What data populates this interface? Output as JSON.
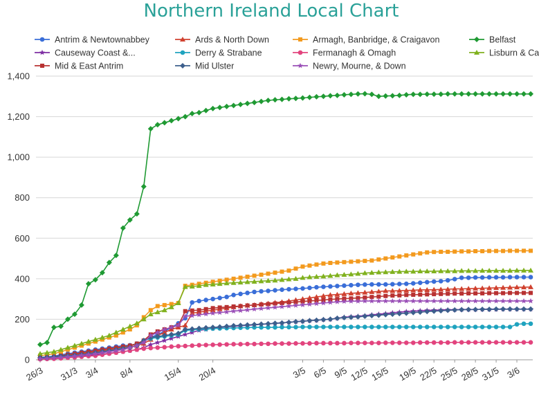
{
  "chart_data": {
    "type": "line",
    "title": "Northern Ireland Local Chart",
    "xlabel": "",
    "ylabel": "",
    "ylim": [
      0,
      1400
    ],
    "yticks": [
      "0",
      "200",
      "400",
      "600",
      "800",
      "1,000",
      "1,200",
      "1,400"
    ],
    "ytick_values": [
      0,
      200,
      400,
      600,
      800,
      1000,
      1200,
      1400
    ],
    "categories": [
      "26/3",
      "27/3",
      "28/3",
      "29/3",
      "30/3",
      "31/3",
      "1/4",
      "2/4",
      "3/4",
      "4/4",
      "5/4",
      "6/4",
      "7/4",
      "8/4",
      "9/4",
      "10/4",
      "11/4",
      "12/4",
      "13/4",
      "14/4",
      "15/4",
      "16/4",
      "17/4",
      "18/4",
      "19/4",
      "20/4",
      "21/4",
      "22/4",
      "23/4",
      "24/4",
      "25/4",
      "26/4",
      "27/4",
      "28/4",
      "29/4",
      "30/4",
      "1/5",
      "2/5",
      "3/5",
      "4/5",
      "5/5",
      "6/5",
      "7/5",
      "8/5",
      "9/5",
      "10/5",
      "11/5",
      "12/5",
      "13/5",
      "14/5",
      "15/5",
      "16/5",
      "17/5",
      "18/5",
      "19/5",
      "20/5",
      "21/5",
      "22/5",
      "23/5",
      "24/5",
      "25/5",
      "26/5",
      "27/5",
      "28/5",
      "29/5",
      "30/5",
      "31/5",
      "1/6",
      "2/6",
      "3/6",
      "4/6",
      "5/6"
    ],
    "xtick_labels": [
      "26/3",
      "31/3",
      "3/4",
      "8/4",
      "15/4",
      "20/4",
      "3/5",
      "6/5",
      "9/5",
      "12/5",
      "15/5",
      "19/5",
      "22/5",
      "25/5",
      "28/5",
      "31/5",
      "3/6"
    ],
    "legend_position": "top",
    "grid": "horizontal",
    "series": [
      {
        "name": "Antrim & Newtownabbey",
        "color": "#3a6ed8",
        "marker": "circle",
        "values": [
          12,
          15,
          18,
          25,
          30,
          35,
          40,
          45,
          50,
          55,
          60,
          65,
          70,
          72,
          78,
          90,
          110,
          125,
          140,
          160,
          180,
          205,
          283,
          290,
          295,
          300,
          305,
          310,
          320,
          325,
          330,
          335,
          338,
          340,
          343,
          346,
          348,
          350,
          352,
          355,
          358,
          360,
          362,
          364,
          366,
          368,
          370,
          371,
          372,
          372,
          372,
          373,
          374,
          375,
          377,
          380,
          383,
          386,
          388,
          392,
          398,
          405,
          405,
          406,
          406,
          407,
          407,
          407,
          408,
          408,
          408,
          408
        ]
      },
      {
        "name": "Ards & North Down",
        "color": "#d0412f",
        "marker": "triangle",
        "values": [
          8,
          10,
          12,
          16,
          20,
          25,
          30,
          35,
          40,
          45,
          50,
          55,
          60,
          65,
          70,
          80,
          100,
          120,
          135,
          150,
          160,
          170,
          230,
          235,
          240,
          245,
          250,
          255,
          260,
          265,
          268,
          270,
          275,
          278,
          282,
          285,
          290,
          295,
          300,
          305,
          310,
          315,
          320,
          322,
          325,
          328,
          330,
          332,
          335,
          337,
          340,
          340,
          341,
          342,
          343,
          345,
          345,
          346,
          347,
          348,
          350,
          350,
          351,
          352,
          353,
          354,
          355,
          356,
          357,
          358,
          358,
          359
        ]
      },
      {
        "name": "Armagh, Banbridge, & Craigavon",
        "color": "#f39a1e",
        "marker": "square",
        "values": [
          20,
          25,
          30,
          40,
          50,
          60,
          70,
          80,
          90,
          100,
          110,
          120,
          135,
          150,
          170,
          210,
          245,
          265,
          270,
          275,
          280,
          365,
          370,
          375,
          380,
          385,
          390,
          395,
          400,
          405,
          410,
          415,
          420,
          425,
          430,
          435,
          440,
          450,
          460,
          465,
          470,
          475,
          478,
          480,
          482,
          484,
          486,
          488,
          490,
          495,
          500,
          505,
          510,
          515,
          520,
          525,
          530,
          532,
          533,
          533,
          534,
          535,
          535,
          536,
          536,
          537,
          537,
          537,
          538,
          538,
          538,
          538
        ]
      },
      {
        "name": "Belfast",
        "color": "#1f9a33",
        "marker": "diamond",
        "values": [
          75,
          85,
          160,
          165,
          200,
          225,
          270,
          375,
          395,
          430,
          480,
          515,
          650,
          690,
          720,
          855,
          1140,
          1160,
          1170,
          1180,
          1190,
          1200,
          1215,
          1220,
          1230,
          1240,
          1245,
          1250,
          1255,
          1260,
          1265,
          1270,
          1275,
          1280,
          1283,
          1285,
          1288,
          1290,
          1292,
          1295,
          1298,
          1300,
          1303,
          1305,
          1308,
          1310,
          1312,
          1313,
          1310,
          1300,
          1302,
          1303,
          1305,
          1308,
          1310,
          1310,
          1311,
          1311,
          1311,
          1312,
          1312,
          1312,
          1312,
          1312,
          1312,
          1312,
          1312,
          1312,
          1312,
          1312,
          1312,
          1312
        ]
      },
      {
        "name": "Causeway Coast &...",
        "color": "#7e2ea3",
        "marker": "star",
        "values": [
          5,
          7,
          9,
          12,
          15,
          18,
          20,
          22,
          25,
          28,
          32,
          36,
          40,
          45,
          50,
          60,
          75,
          85,
          95,
          105,
          115,
          125,
          135,
          145,
          150,
          155,
          160,
          163,
          165,
          168,
          170,
          172,
          175,
          177,
          180,
          182,
          185,
          188,
          190,
          193,
          195,
          198,
          200,
          205,
          210,
          213,
          215,
          218,
          222,
          225,
          228,
          232,
          235,
          238,
          240,
          242,
          244,
          245,
          246,
          247,
          247,
          248,
          248,
          248,
          249,
          249,
          249,
          250,
          250,
          250,
          250,
          250
        ]
      },
      {
        "name": "Derry & Strabane",
        "color": "#1fa3bf",
        "marker": "circle",
        "values": [
          10,
          12,
          15,
          18,
          20,
          22,
          25,
          30,
          35,
          40,
          45,
          50,
          60,
          70,
          80,
          95,
          105,
          110,
          115,
          120,
          125,
          145,
          148,
          150,
          152,
          154,
          155,
          156,
          157,
          158,
          159,
          160,
          160,
          160,
          160,
          161,
          161,
          161,
          162,
          162,
          162,
          162,
          162,
          162,
          162,
          162,
          162,
          162,
          162,
          162,
          162,
          162,
          162,
          162,
          162,
          162,
          162,
          162,
          162,
          162,
          162,
          162,
          162,
          162,
          162,
          162,
          162,
          162,
          162,
          175,
          178,
          178
        ]
      },
      {
        "name": "Fermanagh & Omagh",
        "color": "#e2447e",
        "marker": "circle",
        "values": [
          3,
          4,
          5,
          7,
          10,
          12,
          15,
          18,
          20,
          25,
          30,
          35,
          40,
          45,
          50,
          55,
          58,
          60,
          62,
          65,
          67,
          68,
          70,
          72,
          73,
          74,
          75,
          76,
          77,
          77,
          78,
          78,
          79,
          79,
          80,
          80,
          80,
          81,
          81,
          81,
          82,
          82,
          82,
          82,
          82,
          83,
          83,
          83,
          83,
          83,
          84,
          84,
          84,
          84,
          84,
          85,
          85,
          85,
          85,
          85,
          86,
          86,
          86,
          86,
          86,
          86,
          86,
          86,
          86,
          86,
          86,
          86
        ]
      },
      {
        "name": "Lisburn & Castlereagh",
        "color": "#80b11e",
        "marker": "triangle",
        "values": [
          30,
          35,
          40,
          50,
          60,
          70,
          80,
          90,
          100,
          110,
          120,
          135,
          150,
          165,
          180,
          200,
          225,
          235,
          245,
          260,
          280,
          360,
          362,
          365,
          370,
          372,
          375,
          378,
          380,
          382,
          384,
          386,
          388,
          390,
          392,
          395,
          398,
          400,
          405,
          408,
          410,
          412,
          415,
          418,
          420,
          422,
          425,
          428,
          430,
          432,
          433,
          434,
          435,
          436,
          436,
          437,
          437,
          437,
          438,
          438,
          438,
          439,
          439,
          439,
          440,
          440,
          440,
          440,
          440,
          441,
          441,
          441
        ]
      },
      {
        "name": "Mid & East Antrim",
        "color": "#b83232",
        "marker": "square",
        "values": [
          10,
          12,
          15,
          20,
          25,
          30,
          35,
          40,
          45,
          50,
          55,
          60,
          65,
          70,
          80,
          95,
          125,
          140,
          150,
          160,
          170,
          240,
          243,
          245,
          250,
          255,
          258,
          260,
          263,
          265,
          268,
          270,
          273,
          275,
          278,
          280,
          283,
          285,
          288,
          290,
          293,
          295,
          298,
          300,
          302,
          303,
          305,
          307,
          310,
          312,
          315,
          317,
          318,
          320,
          321,
          322,
          323,
          324,
          325,
          326,
          327,
          327,
          328,
          328,
          328,
          329,
          329,
          329,
          330,
          330,
          330,
          330
        ]
      },
      {
        "name": "Mid Ulster",
        "color": "#3c5f8c",
        "marker": "diamond",
        "values": [
          10,
          12,
          15,
          18,
          20,
          22,
          25,
          30,
          35,
          40,
          45,
          50,
          55,
          60,
          70,
          95,
          110,
          115,
          120,
          125,
          130,
          150,
          152,
          155,
          158,
          160,
          162,
          165,
          168,
          170,
          172,
          174,
          176,
          178,
          180,
          182,
          185,
          188,
          190,
          193,
          195,
          198,
          200,
          205,
          208,
          210,
          212,
          215,
          218,
          220,
          223,
          225,
          228,
          230,
          233,
          235,
          238,
          240,
          242,
          244,
          246,
          247,
          248,
          248,
          249,
          249,
          250,
          250,
          250,
          250,
          250,
          250
        ]
      },
      {
        "name": "Newry, Mourne, & Down",
        "color": "#9a4fb7",
        "marker": "star",
        "values": [
          5,
          7,
          9,
          12,
          15,
          18,
          22,
          26,
          30,
          35,
          40,
          45,
          50,
          60,
          70,
          85,
          120,
          135,
          150,
          160,
          170,
          215,
          218,
          222,
          226,
          230,
          233,
          236,
          240,
          243,
          246,
          250,
          253,
          256,
          259,
          262,
          265,
          268,
          271,
          274,
          277,
          280,
          283,
          286,
          288,
          289,
          289,
          290,
          290,
          290,
          290,
          290,
          290,
          290,
          290,
          290,
          290,
          290,
          290,
          290,
          290,
          290,
          290,
          290,
          290,
          290,
          290,
          290,
          290,
          290,
          290,
          290
        ]
      }
    ]
  }
}
